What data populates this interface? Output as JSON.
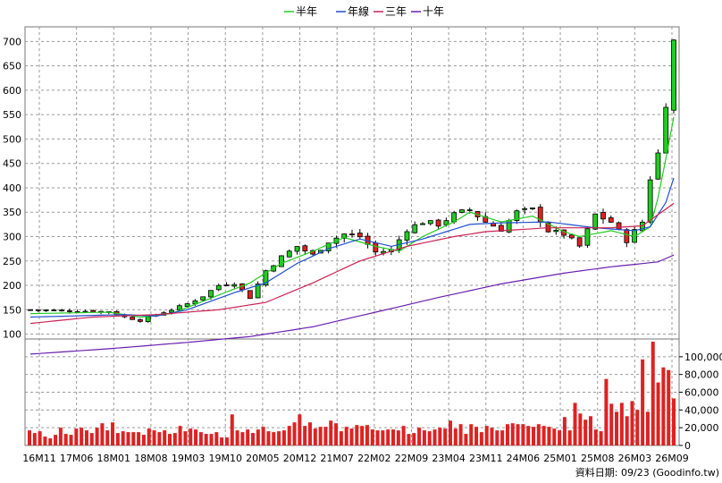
{
  "legend": [
    {
      "label": "半年",
      "color": "#22cc22"
    },
    {
      "label": "年線",
      "color": "#1f4fd1"
    },
    {
      "label": "三年",
      "color": "#cc2255"
    },
    {
      "label": "十年",
      "color": "#6a1fb0"
    }
  ],
  "source_label": "資料日期: 09/23 (Goodinfo.tw)",
  "chart_data": [
    {
      "type": "candlestick",
      "y_ticks": [
        100,
        150,
        200,
        250,
        300,
        350,
        400,
        450,
        500,
        550,
        600,
        650,
        700
      ],
      "ylim": [
        90,
        730
      ],
      "x_tick_labels": [
        "16M11",
        "17M06",
        "18M01",
        "18M08",
        "19M03",
        "19M10",
        "20M05",
        "20M12",
        "21M07",
        "22M02",
        "22M09",
        "23M04",
        "23M11",
        "24M06",
        "25M01",
        "25M08",
        "26M03",
        "26M09"
      ],
      "up_color": "#22cc22",
      "down_color": "#dd2222",
      "anchors_close": [
        [
          0,
          150
        ],
        [
          5,
          148
        ],
        [
          10,
          146
        ],
        [
          12,
          135
        ],
        [
          14,
          128
        ],
        [
          16,
          140
        ],
        [
          18,
          150
        ],
        [
          20,
          162
        ],
        [
          22,
          178
        ],
        [
          24,
          200
        ],
        [
          26,
          205
        ],
        [
          28,
          175
        ],
        [
          30,
          230
        ],
        [
          32,
          258
        ],
        [
          34,
          280
        ],
        [
          36,
          262
        ],
        [
          38,
          290
        ],
        [
          40,
          305
        ],
        [
          42,
          300
        ],
        [
          44,
          268
        ],
        [
          46,
          272
        ],
        [
          48,
          315
        ],
        [
          50,
          330
        ],
        [
          52,
          325
        ],
        [
          54,
          345
        ],
        [
          56,
          355
        ],
        [
          58,
          330
        ],
        [
          60,
          315
        ],
        [
          62,
          350
        ],
        [
          64,
          355
        ],
        [
          66,
          312
        ],
        [
          68,
          305
        ],
        [
          70,
          280
        ],
        [
          72,
          345
        ],
        [
          74,
          330
        ],
        [
          76,
          292
        ],
        [
          78,
          330
        ],
        [
          79,
          420
        ],
        [
          80,
          470
        ],
        [
          81,
          575
        ],
        [
          82,
          700
        ]
      ],
      "ma_half_year": [
        [
          0,
          142
        ],
        [
          10,
          145
        ],
        [
          14,
          135
        ],
        [
          18,
          142
        ],
        [
          24,
          180
        ],
        [
          28,
          205
        ],
        [
          32,
          245
        ],
        [
          36,
          270
        ],
        [
          40,
          298
        ],
        [
          44,
          280
        ],
        [
          47,
          270
        ],
        [
          50,
          300
        ],
        [
          54,
          330
        ],
        [
          56,
          350
        ],
        [
          60,
          330
        ],
        [
          64,
          342
        ],
        [
          68,
          310
        ],
        [
          70,
          300
        ],
        [
          74,
          312
        ],
        [
          77,
          300
        ],
        [
          79,
          320
        ],
        [
          80,
          380
        ],
        [
          81,
          460
        ],
        [
          82,
          545
        ]
      ],
      "ma_year": [
        [
          0,
          135
        ],
        [
          12,
          140
        ],
        [
          16,
          137
        ],
        [
          20,
          150
        ],
        [
          26,
          185
        ],
        [
          30,
          205
        ],
        [
          34,
          245
        ],
        [
          38,
          275
        ],
        [
          42,
          295
        ],
        [
          46,
          280
        ],
        [
          50,
          295
        ],
        [
          56,
          325
        ],
        [
          60,
          328
        ],
        [
          66,
          330
        ],
        [
          72,
          318
        ],
        [
          77,
          312
        ],
        [
          79,
          320
        ],
        [
          81,
          370
        ],
        [
          82,
          420
        ]
      ],
      "ma_three_year": [
        [
          0,
          122
        ],
        [
          8,
          135
        ],
        [
          16,
          140
        ],
        [
          24,
          150
        ],
        [
          30,
          165
        ],
        [
          36,
          205
        ],
        [
          42,
          250
        ],
        [
          48,
          280
        ],
        [
          54,
          300
        ],
        [
          58,
          310
        ],
        [
          66,
          318
        ],
        [
          74,
          318
        ],
        [
          78,
          322
        ],
        [
          80,
          345
        ],
        [
          82,
          368
        ]
      ],
      "ma_ten_year": [
        [
          0,
          59
        ],
        [
          10,
          70
        ],
        [
          20,
          83
        ],
        [
          28,
          95
        ],
        [
          36,
          115
        ],
        [
          44,
          145
        ],
        [
          52,
          175
        ],
        [
          60,
          203
        ],
        [
          68,
          225
        ],
        [
          74,
          238
        ],
        [
          80,
          248
        ],
        [
          82,
          262
        ]
      ]
    },
    {
      "type": "bar",
      "y_ticks": [
        0,
        20000,
        40000,
        60000,
        80000,
        100000
      ],
      "y_tick_labels": [
        "0",
        "20,000",
        "40,000",
        "60,000",
        "80,000",
        "100,000"
      ],
      "ylim": [
        0,
        120000
      ],
      "values": [
        17000,
        14000,
        16000,
        10000,
        8000,
        12000,
        20000,
        13000,
        12000,
        19000,
        20000,
        17000,
        14000,
        20000,
        25000,
        17000,
        26000,
        14000,
        16000,
        15000,
        15000,
        15000,
        12000,
        19000,
        17000,
        15000,
        17000,
        13000,
        14000,
        22000,
        16000,
        19000,
        18000,
        15000,
        13000,
        13000,
        15000,
        9000,
        9000,
        35000,
        17000,
        15000,
        18000,
        14000,
        18000,
        21000,
        16000,
        15000,
        16000,
        17000,
        22000,
        26000,
        35000,
        22000,
        26000,
        19000,
        21000,
        21000,
        28000,
        25000,
        16000,
        21000,
        19000,
        23000,
        22000,
        23000,
        18000,
        17000,
        17000,
        18000,
        18000,
        17000,
        22000,
        13000,
        14000,
        20000,
        17000,
        16000,
        18000,
        20000,
        19000,
        28000,
        19000,
        24000,
        13000,
        24000,
        21000,
        15000,
        22000,
        20000,
        17000,
        17000,
        24000,
        25000,
        24000,
        24000,
        22000,
        21000,
        24000,
        22000,
        21000,
        19000,
        17000,
        32000,
        17000,
        48000,
        36000,
        29000,
        33000,
        18000,
        16000,
        75000,
        47000,
        38000,
        48000,
        33000,
        50000,
        40000,
        97000,
        38000,
        117000,
        71000,
        88000,
        85000,
        53000
      ]
    }
  ]
}
